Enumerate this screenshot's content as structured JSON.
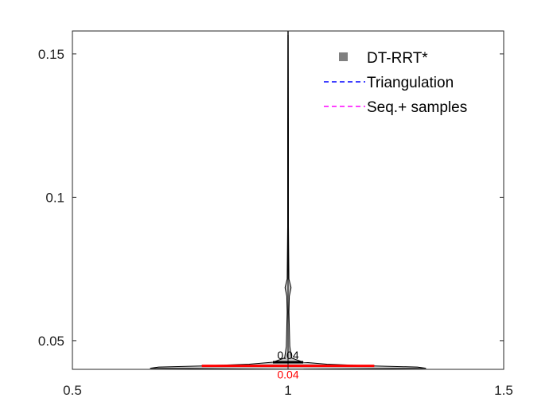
{
  "chart_data": {
    "type": "violin",
    "title": "",
    "xlabel": "",
    "ylabel": "",
    "xlim": [
      0.5,
      1.5
    ],
    "ylim": [
      0.04,
      0.158
    ],
    "x_ticks": [
      0.5,
      1,
      1.5
    ],
    "x_tick_labels": [
      "0.5",
      "1",
      "1.5"
    ],
    "y_ticks": [
      0.05,
      0.1,
      0.15
    ],
    "y_tick_labels": [
      "0.05",
      "0.1",
      "0.15"
    ],
    "grid": false,
    "legend_placement": "top-right",
    "legend": [
      {
        "label": "DT-RRT*",
        "style": "square-marker",
        "color": "#808080"
      },
      {
        "label": "Triangulation",
        "style": "dashed-line",
        "color": "#0000ff"
      },
      {
        "label": "Seq.+ samples",
        "style": "dashed-line",
        "color": "#ff00ff"
      }
    ],
    "series": [
      {
        "name": "DT-RRT*",
        "position": 1,
        "fill_color": "#c8c8c8",
        "edge_color": "#000000",
        "min": 0.04,
        "max": 0.158,
        "mean": 0.0425,
        "median": 0.0412,
        "mean_label": "0.04",
        "median_label": "0.04",
        "mean_color": "#000000",
        "median_color": "#ff0000",
        "density_profile": [
          [
            0.04,
            0.0
          ],
          [
            0.0404,
            0.32
          ],
          [
            0.0408,
            0.3
          ],
          [
            0.0412,
            0.2
          ],
          [
            0.0418,
            0.09
          ],
          [
            0.0425,
            0.035
          ],
          [
            0.044,
            0.008
          ],
          [
            0.048,
            0.004
          ],
          [
            0.06,
            0.002
          ],
          [
            0.0655,
            0.003
          ],
          [
            0.0685,
            0.007
          ],
          [
            0.0715,
            0.002
          ],
          [
            0.09,
            0.001
          ],
          [
            0.125,
            0.001
          ],
          [
            0.158,
            0.0005
          ]
        ]
      }
    ]
  }
}
